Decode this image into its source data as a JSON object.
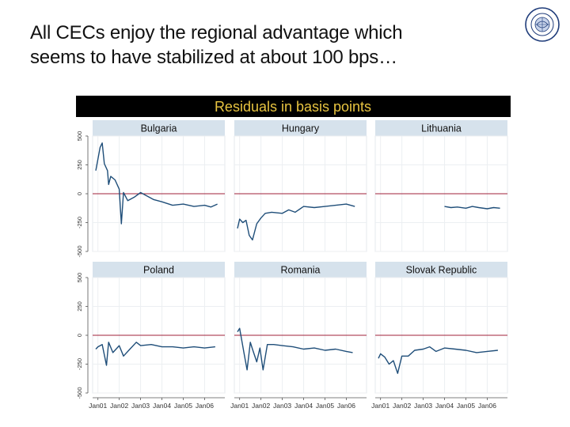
{
  "slide": {
    "title_line1": "All CECs enjoy the regional advantage which",
    "title_line2": "seems to have stabilized at about 100 bps…",
    "logo_text": "INTERNATIONAL MONETARY FUND"
  },
  "chart_data": {
    "type": "line",
    "title": "Residuals in basis points",
    "xlabel": "",
    "ylabel": "",
    "ylim": [
      -500,
      500
    ],
    "yticks": [
      -500,
      -250,
      0,
      250,
      500
    ],
    "ytick_labels": [
      "-500",
      "-250",
      "0",
      "250",
      "500"
    ],
    "xticks": [
      "Jan01",
      "Jan02",
      "Jan03",
      "Jan04",
      "Jan05",
      "Jan06"
    ],
    "reference_line": 0,
    "colors": {
      "series": "#1f4e79",
      "reference": "#a0203a",
      "panel_header": "#d6e2ec",
      "title_bar": "#000000",
      "title_text": "#e8c440"
    },
    "grid": true,
    "panels": [
      {
        "name": "Bulgaria",
        "x": [
          2000.9,
          2001.0,
          2001.1,
          2001.2,
          2001.3,
          2001.45,
          2001.5,
          2001.6,
          2001.8,
          2002.0,
          2002.1,
          2002.2,
          2002.4,
          2002.7,
          2003.0,
          2003.3,
          2003.6,
          2004.0,
          2004.5,
          2005.0,
          2005.5,
          2006.0,
          2006.3,
          2006.6
        ],
        "y": [
          200,
          300,
          400,
          440,
          260,
          200,
          80,
          150,
          120,
          40,
          -260,
          10,
          -60,
          -30,
          10,
          -20,
          -50,
          -70,
          -100,
          -90,
          -110,
          -100,
          -115,
          -90
        ]
      },
      {
        "name": "Hungary",
        "x": [
          2000.9,
          2001.0,
          2001.15,
          2001.3,
          2001.45,
          2001.6,
          2001.8,
          2002.0,
          2002.2,
          2002.5,
          2003.0,
          2003.3,
          2003.6,
          2004.0,
          2004.5,
          2005.0,
          2005.5,
          2006.0,
          2006.4
        ],
        "y": [
          -300,
          -220,
          -250,
          -230,
          -360,
          -400,
          -260,
          -210,
          -170,
          -160,
          -170,
          -140,
          -160,
          -110,
          -120,
          -110,
          -100,
          -90,
          -110
        ]
      },
      {
        "name": "Lithuania",
        "x": [
          2004.0,
          2004.3,
          2004.6,
          2005.0,
          2005.3,
          2005.6,
          2006.0,
          2006.3,
          2006.6
        ],
        "y": [
          -110,
          -120,
          -115,
          -125,
          -110,
          -120,
          -130,
          -120,
          -125
        ]
      },
      {
        "name": "Poland",
        "x": [
          2000.9,
          2001.0,
          2001.2,
          2001.4,
          2001.5,
          2001.7,
          2002.0,
          2002.2,
          2002.5,
          2002.8,
          2003.0,
          2003.5,
          2004.0,
          2004.5,
          2005.0,
          2005.5,
          2006.0,
          2006.5
        ],
        "y": [
          -120,
          -100,
          -80,
          -260,
          -60,
          -150,
          -90,
          -180,
          -120,
          -60,
          -90,
          -80,
          -100,
          -100,
          -110,
          -100,
          -110,
          -100
        ]
      },
      {
        "name": "Romania",
        "x": [
          2000.9,
          2001.0,
          2001.2,
          2001.35,
          2001.5,
          2001.6,
          2001.8,
          2001.95,
          2002.1,
          2002.3,
          2002.6,
          2003.0,
          2003.5,
          2004.0,
          2004.5,
          2005.0,
          2005.5,
          2006.0,
          2006.3
        ],
        "y": [
          30,
          60,
          -150,
          -300,
          -60,
          -120,
          -230,
          -110,
          -300,
          -80,
          -80,
          -90,
          -100,
          -120,
          -110,
          -130,
          -120,
          -140,
          -150
        ]
      },
      {
        "name": "Slovak Republic",
        "x": [
          2000.9,
          2001.0,
          2001.2,
          2001.4,
          2001.6,
          2001.8,
          2002.0,
          2002.3,
          2002.6,
          2003.0,
          2003.3,
          2003.6,
          2004.0,
          2004.5,
          2005.0,
          2005.5,
          2006.0,
          2006.5
        ],
        "y": [
          -200,
          -160,
          -190,
          -250,
          -220,
          -330,
          -180,
          -180,
          -130,
          -120,
          -100,
          -140,
          -110,
          -120,
          -130,
          -150,
          -140,
          -130
        ]
      }
    ]
  }
}
